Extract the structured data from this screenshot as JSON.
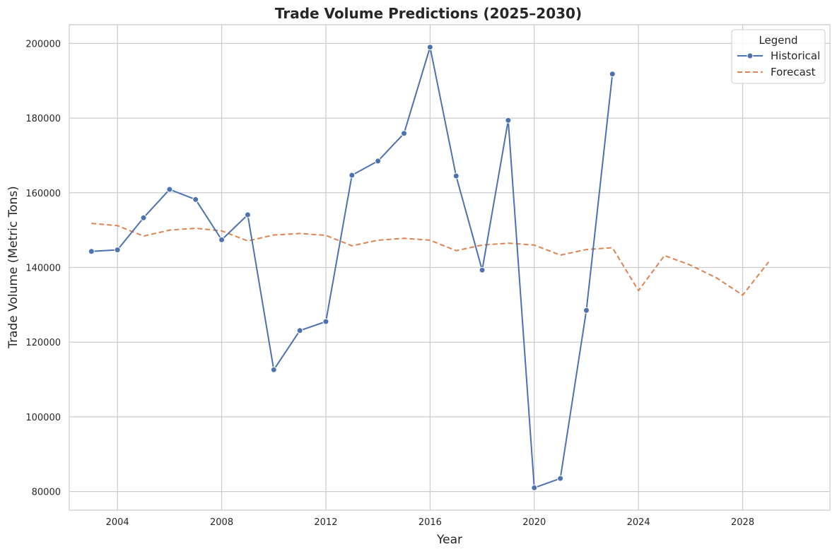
{
  "chart_data": {
    "type": "line",
    "title": "Trade Volume Predictions (2025–2030)",
    "xlabel": "Year",
    "ylabel": "Trade Volume (Metric Tons)",
    "xlim": [
      2002.15,
      2031.35
    ],
    "ylim": [
      75000,
      205000
    ],
    "xticks": [
      2004,
      2008,
      2012,
      2016,
      2020,
      2024,
      2028
    ],
    "yticks": [
      80000,
      100000,
      120000,
      140000,
      160000,
      180000,
      200000
    ],
    "grid": true,
    "legend": {
      "title": "Legend",
      "placement": "top-right",
      "entries": [
        "Historical",
        "Forecast"
      ]
    },
    "series": [
      {
        "name": "Historical",
        "color": "#4c72b0",
        "style": "solid",
        "marker": "circle",
        "x": [
          2003,
          2004,
          2005,
          2006,
          2007,
          2008,
          2009,
          2010,
          2011,
          2012,
          2013,
          2014,
          2015,
          2016,
          2017,
          2018,
          2019,
          2020,
          2021,
          2022,
          2023
        ],
        "y": [
          144300,
          144700,
          153300,
          160900,
          158200,
          147400,
          154100,
          112600,
          123100,
          125500,
          164700,
          168500,
          175900,
          199000,
          164500,
          139300,
          179400,
          81000,
          83500,
          128500,
          191800
        ]
      },
      {
        "name": "Forecast",
        "color": "#dd8452",
        "style": "dashed",
        "marker": "none",
        "x": [
          2003,
          2004,
          2005,
          2006,
          2007,
          2008,
          2009,
          2010,
          2011,
          2012,
          2013,
          2014,
          2015,
          2016,
          2017,
          2018,
          2019,
          2020,
          2021,
          2022,
          2023,
          2024,
          2025,
          2026,
          2027,
          2028,
          2029
        ],
        "y": [
          151800,
          151200,
          148400,
          150000,
          150500,
          149800,
          147100,
          148700,
          149100,
          148600,
          145800,
          147300,
          147800,
          147300,
          144500,
          146000,
          146500,
          146000,
          143300,
          144800,
          145300,
          133800,
          143200,
          140600,
          137200,
          132600,
          141500
        ]
      }
    ]
  }
}
